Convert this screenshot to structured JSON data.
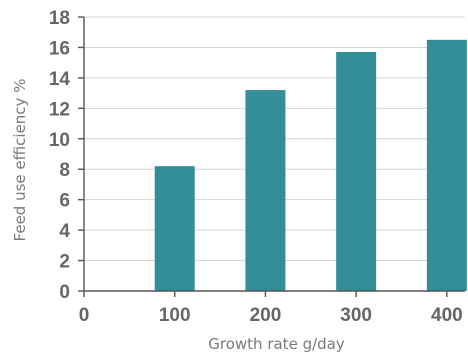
{
  "chart_data": {
    "type": "bar",
    "x": [
      100,
      200,
      300,
      400
    ],
    "values": [
      8.2,
      13.2,
      15.7,
      16.5
    ],
    "xlabel": "Growth rate g/day",
    "ylabel": "Feed use efficiency %",
    "xlim": [
      0,
      420
    ],
    "ylim": [
      0,
      18
    ],
    "xticks": [
      0,
      100,
      200,
      300,
      400
    ],
    "yticks": [
      0,
      2,
      4,
      6,
      8,
      10,
      12,
      14,
      16,
      18
    ],
    "grid": "horizontal",
    "bar_color": "#338e99"
  }
}
